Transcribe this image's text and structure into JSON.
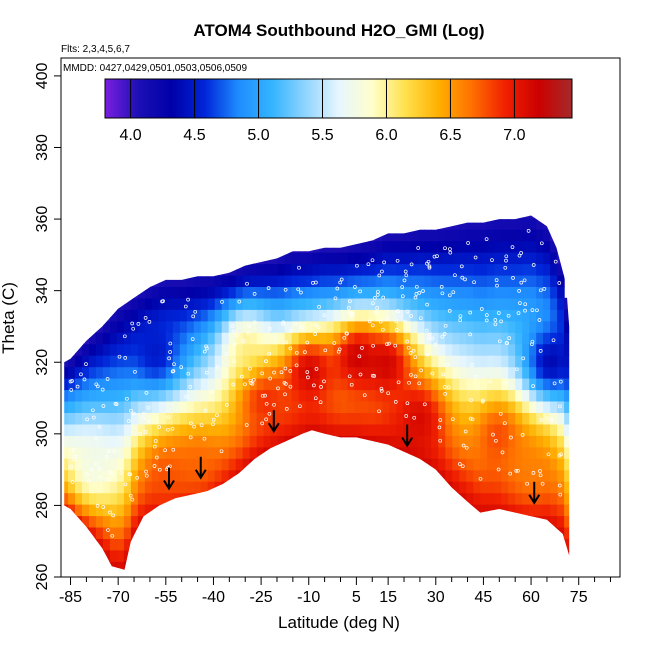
{
  "chart_data": {
    "type": "heatmap",
    "title": "ATOM4 Southbound H2O_GMI (Log)",
    "notes": {
      "flights": "Flts: 2,3,4,5,6,7",
      "dates": "MMDD: 0427,0429,0501,0503,0506,0509"
    },
    "xlabel": "Latitude (deg N)",
    "ylabel": "Theta (C)",
    "xlim": [
      -88,
      88
    ],
    "ylim": [
      260,
      405
    ],
    "x_ticks": [
      -85,
      -70,
      -55,
      -40,
      -25,
      -10,
      5,
      15,
      30,
      45,
      60,
      75
    ],
    "x_minor_ticks": [
      -80,
      -75,
      -65,
      -60,
      -50,
      -45,
      -35,
      -30,
      -20,
      -15,
      -5,
      0,
      10,
      20,
      25,
      35,
      40,
      50,
      55,
      65,
      70,
      80,
      85
    ],
    "y_ticks": [
      260,
      280,
      300,
      320,
      340,
      360,
      380,
      400
    ],
    "colorbar": {
      "min": 3.8,
      "max": 7.45,
      "ticks": [
        4.0,
        4.5,
        5.0,
        5.5,
        6.0,
        6.5,
        7.0
      ],
      "tick_labels": [
        "4.0",
        "4.5",
        "5.0",
        "5.5",
        "6.0",
        "6.5",
        "7.0"
      ],
      "colors": [
        "#7b1fe0",
        "#1c0fb5",
        "#0000a8",
        "#0026d9",
        "#1e8cff",
        "#33b4ff",
        "#8fd4ff",
        "#e6f6ff",
        "#ffffcc",
        "#ffe14d",
        "#ffb000",
        "#ff7000",
        "#f02000",
        "#cc0000",
        "#a52a2a"
      ]
    },
    "top_boundary": [
      [
        -87,
        320
      ],
      [
        -85,
        321
      ],
      [
        -80,
        326
      ],
      [
        -75,
        330
      ],
      [
        -70,
        335
      ],
      [
        -65,
        338
      ],
      [
        -60,
        341
      ],
      [
        -55,
        343
      ],
      [
        -50,
        343
      ],
      [
        -45,
        344
      ],
      [
        -40,
        344
      ],
      [
        -35,
        345
      ],
      [
        -30,
        347
      ],
      [
        -25,
        348
      ],
      [
        -20,
        349
      ],
      [
        -15,
        351
      ],
      [
        -10,
        351
      ],
      [
        -5,
        352
      ],
      [
        0,
        352
      ],
      [
        5,
        353
      ],
      [
        10,
        354
      ],
      [
        15,
        356
      ],
      [
        20,
        356
      ],
      [
        25,
        357
      ],
      [
        30,
        357
      ],
      [
        35,
        358
      ],
      [
        40,
        359
      ],
      [
        45,
        359
      ],
      [
        50,
        360
      ],
      [
        55,
        360
      ],
      [
        60,
        361
      ],
      [
        65,
        358
      ],
      [
        68,
        352
      ],
      [
        71,
        342
      ],
      [
        72,
        330
      ]
    ],
    "bottom_boundary": [
      [
        -87,
        280
      ],
      [
        -85,
        279
      ],
      [
        -80,
        274
      ],
      [
        -75,
        268
      ],
      [
        -72,
        263
      ],
      [
        -68,
        262
      ],
      [
        -66,
        270
      ],
      [
        -62,
        277
      ],
      [
        -57,
        280
      ],
      [
        -52,
        282
      ],
      [
        -47,
        283
      ],
      [
        -42,
        284
      ],
      [
        -37,
        286
      ],
      [
        -32,
        289
      ],
      [
        -27,
        293
      ],
      [
        -22,
        296
      ],
      [
        -17,
        298
      ],
      [
        -12,
        300
      ],
      [
        -9,
        301
      ],
      [
        -5,
        300
      ],
      [
        0,
        299
      ],
      [
        5,
        299
      ],
      [
        10,
        298
      ],
      [
        15,
        297
      ],
      [
        20,
        295
      ],
      [
        25,
        293
      ],
      [
        30,
        290
      ],
      [
        35,
        285
      ],
      [
        40,
        281
      ],
      [
        44,
        278
      ],
      [
        50,
        279
      ],
      [
        55,
        278
      ],
      [
        60,
        277
      ],
      [
        65,
        276
      ],
      [
        70,
        272
      ],
      [
        72,
        266
      ]
    ],
    "smoothed_field_cores": [
      {
        "lat": -25,
        "theta": 312,
        "value": 7.1
      },
      {
        "lat": -10,
        "theta": 318,
        "value": 7.3
      },
      {
        "lat": 5,
        "theta": 322,
        "value": 7.35
      },
      {
        "lat": 15,
        "theta": 320,
        "value": 7.3
      },
      {
        "lat": 25,
        "theta": 305,
        "value": 7.2
      },
      {
        "lat": 50,
        "theta": 300,
        "value": 6.9
      },
      {
        "lat": -55,
        "theta": 288,
        "value": 6.8
      },
      {
        "lat": -45,
        "theta": 292,
        "value": 6.7
      },
      {
        "lat": 60,
        "theta": 290,
        "value": 6.6
      },
      {
        "lat": -78,
        "theta": 290,
        "value": 5.7
      },
      {
        "lat": -30,
        "theta": 325,
        "value": 6.1
      },
      {
        "lat": -58,
        "theta": 322,
        "value": 4.4
      },
      {
        "lat": 66,
        "theta": 320,
        "value": 4.2
      }
    ],
    "arrows": [
      {
        "lat": -54,
        "theta": 285
      },
      {
        "lat": -44,
        "theta": 288
      },
      {
        "lat": -21,
        "theta": 301
      },
      {
        "lat": 21,
        "theta": 297
      },
      {
        "lat": 61,
        "theta": 281
      }
    ]
  }
}
